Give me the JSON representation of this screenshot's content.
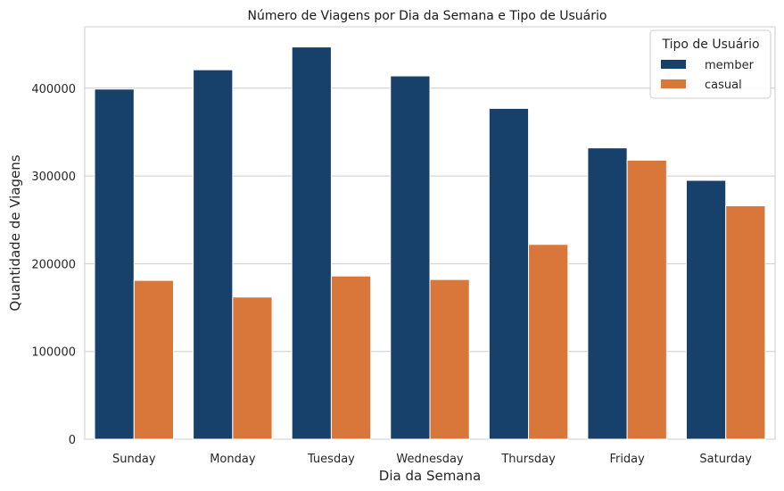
{
  "chart_data": {
    "type": "bar",
    "title": "Número de Viagens por Dia da Semana e Tipo de Usuário",
    "xlabel": "Dia da Semana",
    "ylabel": "Quantidade de Viagens",
    "categories": [
      "Sunday",
      "Monday",
      "Tuesday",
      "Wednesday",
      "Thursday",
      "Friday",
      "Saturday"
    ],
    "series": [
      {
        "name": "member",
        "color": "#17406a",
        "values": [
          399000,
          421000,
          447000,
          414000,
          377000,
          332000,
          295000
        ]
      },
      {
        "name": "casual",
        "color": "#d9773a",
        "values": [
          181000,
          162000,
          186000,
          182000,
          222000,
          318000,
          266000
        ]
      }
    ],
    "ylim": [
      0,
      470000
    ],
    "yticks": [
      "0",
      "100000",
      "200000",
      "300000",
      "400000"
    ],
    "legend_title": "Tipo de Usuário",
    "legend_position": "top-right",
    "grid": "horizontal"
  }
}
